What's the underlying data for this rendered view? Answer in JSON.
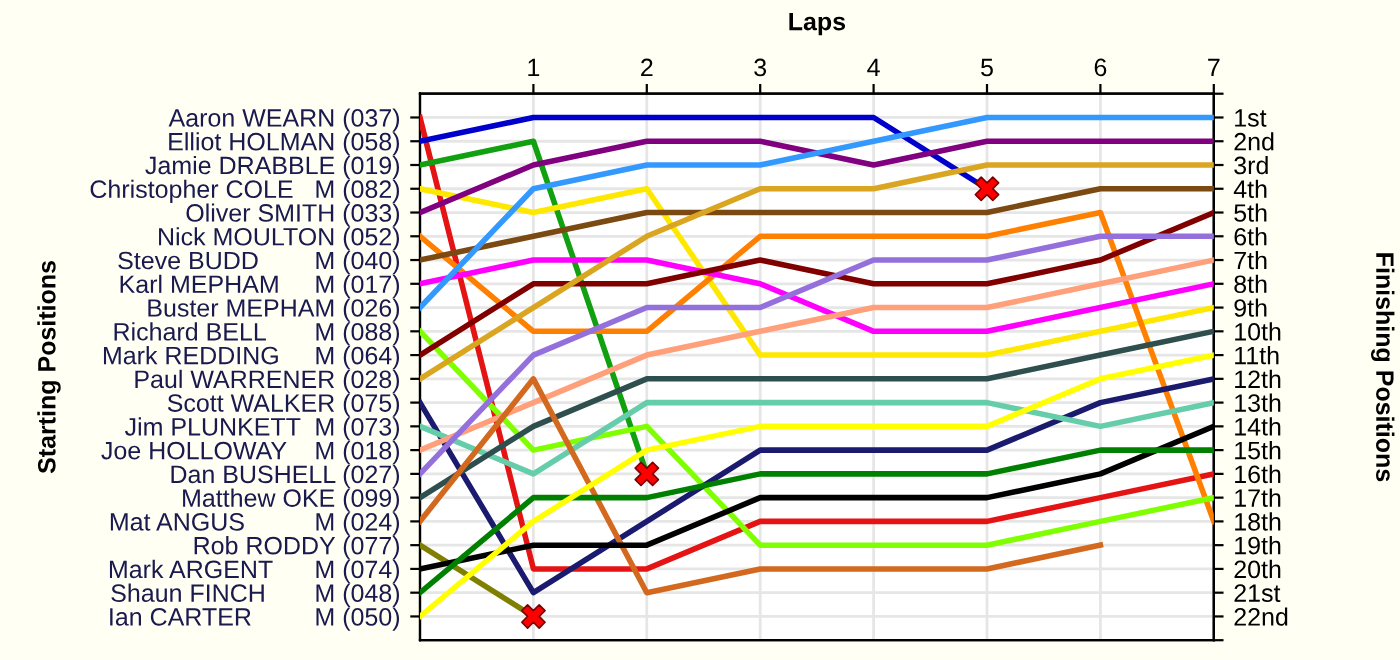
{
  "chart_data": {
    "type": "line",
    "xlabel": "Laps",
    "annotations": [
      "Starting Positions"
    ],
    "y2label": "Finishing Positions",
    "x": [
      0,
      1,
      2,
      3,
      4,
      5,
      6,
      7
    ],
    "xlim": [
      0,
      7
    ],
    "xticks": [
      1,
      2,
      3,
      4,
      5,
      6,
      7
    ],
    "y_categories": [
      "Aaron WEARN (037)",
      "Elliot HOLMAN (058)",
      "Jamie DRABBLE (019)",
      "Christopher COLE   M (082)",
      "Oliver SMITH (033)",
      "Nick MOULTON (052)",
      "Steve BUDD        M (040)",
      "Karl MEPHAM     M (017)",
      "Buster MEPHAM (026)",
      "Richard BELL       M (088)",
      "Mark REDDING     M (064)",
      "Paul WARRENER (028)",
      "Scott WALKER (075)",
      "Jim PLUNKETT  M (073)",
      "Joe HOLLOWAY    M (018)",
      "Dan BUSHELL (027)",
      "Matthew OKE (099)",
      "Mat ANGUS          M (024)",
      "Rob RODDY (077)",
      "Mark ARGENT      M (074)",
      "Shaun FINCH       M (048)",
      "Ian CARTER         M (050)"
    ],
    "y2lim": [
      23,
      0
    ],
    "y2ticks": [
      {
        "value": 0,
        "label": null
      },
      {
        "value": 1,
        "label": "1st"
      },
      {
        "value": 2,
        "label": "2nd"
      },
      {
        "value": 3,
        "label": "3rd"
      },
      {
        "value": 4,
        "label": "4th"
      },
      {
        "value": 5,
        "label": "5th"
      },
      {
        "value": 6,
        "label": "6th"
      },
      {
        "value": 7,
        "label": "7th"
      },
      {
        "value": 8,
        "label": "8th"
      },
      {
        "value": 9,
        "label": "9th"
      },
      {
        "value": 10,
        "label": "10th"
      },
      {
        "value": 11,
        "label": "11th"
      },
      {
        "value": 12,
        "label": "12th"
      },
      {
        "value": 13,
        "label": "13th"
      },
      {
        "value": 14,
        "label": "14th"
      },
      {
        "value": 15,
        "label": "15th"
      },
      {
        "value": 16,
        "label": "16th"
      },
      {
        "value": 17,
        "label": "17th"
      },
      {
        "value": 18,
        "label": "18th"
      },
      {
        "value": 19,
        "label": "19th"
      },
      {
        "value": 20,
        "label": "20th"
      },
      {
        "value": 21,
        "label": "21st"
      },
      {
        "value": 22,
        "label": "22nd"
      },
      {
        "value": 23,
        "label": null
      }
    ],
    "grid": true,
    "marker": "none",
    "line_style": "solid",
    "series": [
      {
        "axis": "y2",
        "color": "#e41414",
        "values": [
          1,
          20,
          20,
          18,
          18,
          18,
          17,
          16
        ]
      },
      {
        "axis": "y2",
        "color": "#0000cc",
        "values": [
          2,
          1,
          1,
          1,
          1,
          4,
          null,
          null
        ]
      },
      {
        "axis": "y2",
        "color": "#10a010",
        "values": [
          3,
          2,
          16,
          null,
          null,
          null,
          null,
          null
        ]
      },
      {
        "axis": "y2",
        "color": "#ffe800",
        "values": [
          4,
          5,
          4,
          11,
          11,
          11,
          10,
          9
        ]
      },
      {
        "axis": "y2",
        "color": "#800080",
        "values": [
          5,
          3,
          2,
          2,
          3,
          2,
          2,
          2
        ]
      },
      {
        "axis": "y2",
        "color": "#ff8000",
        "values": [
          6,
          10,
          10,
          6,
          6,
          6,
          5,
          18
        ]
      },
      {
        "axis": "y2",
        "color": "#7b4a12",
        "values": [
          7,
          6,
          5,
          5,
          5,
          5,
          4,
          4
        ]
      },
      {
        "axis": "y2",
        "color": "#ff00ff",
        "values": [
          8,
          7,
          7,
          8,
          10,
          10,
          9,
          8
        ]
      },
      {
        "axis": "y2",
        "color": "#3399ff",
        "values": [
          9,
          4,
          3,
          3,
          2,
          1,
          1,
          1
        ]
      },
      {
        "axis": "y2",
        "color": "#80ff00",
        "values": [
          10,
          15,
          14,
          19,
          19,
          19,
          18,
          17
        ]
      },
      {
        "axis": "y2",
        "color": "#800000",
        "values": [
          11,
          8,
          8,
          7,
          8,
          8,
          7,
          5
        ]
      },
      {
        "axis": "y2",
        "color": "#daa520",
        "values": [
          12,
          9,
          6,
          4,
          4,
          3,
          3,
          3
        ]
      },
      {
        "axis": "y2",
        "color": "#1a1a6e",
        "values": [
          13,
          21,
          18,
          15,
          15,
          15,
          13,
          12
        ]
      },
      {
        "axis": "y2",
        "color": "#66cdaa",
        "values": [
          14,
          16,
          13,
          13,
          13,
          13,
          14,
          13
        ]
      },
      {
        "axis": "y2",
        "color": "#ffa07a",
        "values": [
          15,
          13,
          11,
          10,
          9,
          9,
          8,
          7
        ]
      },
      {
        "axis": "y2",
        "color": "#9370db",
        "values": [
          16,
          11,
          9,
          9,
          7,
          7,
          6,
          6
        ]
      },
      {
        "axis": "y2",
        "color": "#2f4f4f",
        "values": [
          17,
          14,
          12,
          12,
          12,
          12,
          11,
          10
        ]
      },
      {
        "axis": "y2",
        "color": "#d2691e",
        "values": [
          18,
          12,
          21,
          20,
          20,
          20,
          19,
          null
        ]
      },
      {
        "axis": "y2",
        "color": "#808000",
        "values": [
          19,
          22,
          null,
          null,
          null,
          null,
          null,
          null
        ]
      },
      {
        "axis": "y2",
        "color": "#000000",
        "values": [
          20,
          19,
          19,
          17,
          17,
          17,
          16,
          14
        ]
      },
      {
        "axis": "y2",
        "color": "#008000",
        "values": [
          21,
          17,
          17,
          16,
          16,
          16,
          15,
          15
        ]
      },
      {
        "axis": "y2",
        "color": "#ffff00",
        "values": [
          22,
          18,
          15,
          14,
          14,
          14,
          12,
          11
        ]
      },
      {
        "axis": "y2",
        "type": "scatter",
        "marker": "cross",
        "color": "#ff0000",
        "x": [
          5,
          2,
          1
        ],
        "values": [
          4,
          16,
          22
        ]
      }
    ]
  }
}
